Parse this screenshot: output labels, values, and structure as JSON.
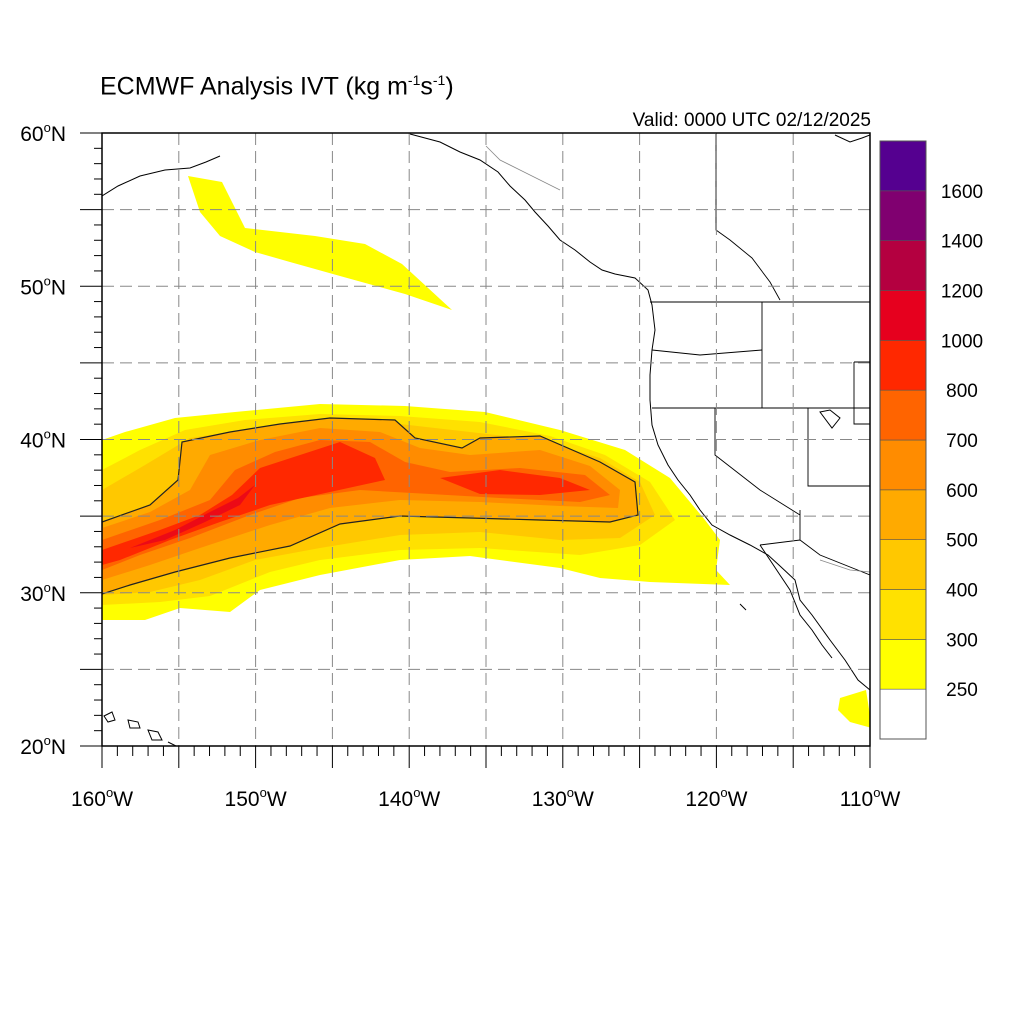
{
  "header": {
    "title_prefix": "ECMWF Analysis IVT (kg m",
    "title_exp1": "-1",
    "title_mid": "s",
    "title_exp2": "-1",
    "title_suffix": ")",
    "valid": "Valid: 0000 UTC 02/12/2025"
  },
  "axes": {
    "lat_labels": [
      {
        "value": 60,
        "deg": "60",
        "hemi": "N"
      },
      {
        "value": 50,
        "deg": "50",
        "hemi": "N"
      },
      {
        "value": 40,
        "deg": "40",
        "hemi": "N"
      },
      {
        "value": 30,
        "deg": "30",
        "hemi": "N"
      },
      {
        "value": 20,
        "deg": "20",
        "hemi": "N"
      }
    ],
    "lon_labels": [
      {
        "value": -160,
        "deg": "160",
        "hemi": "W"
      },
      {
        "value": -150,
        "deg": "150",
        "hemi": "W"
      },
      {
        "value": -140,
        "deg": "140",
        "hemi": "W"
      },
      {
        "value": -130,
        "deg": "130",
        "hemi": "W"
      },
      {
        "value": -120,
        "deg": "120",
        "hemi": "W"
      },
      {
        "value": -110,
        "deg": "110",
        "hemi": "W"
      }
    ],
    "lat_range": [
      20,
      60
    ],
    "lon_range": [
      -160,
      -110
    ],
    "grid": true
  },
  "colorbar": {
    "levels": [
      250,
      300,
      400,
      500,
      600,
      700,
      800,
      1000,
      1200,
      1400,
      1600
    ],
    "labels": [
      "250",
      "300",
      "400",
      "500",
      "600",
      "700",
      "800",
      "1000",
      "1200",
      "1400",
      "1600"
    ],
    "colors": [
      "#ffffff",
      "#ffff00",
      "#ffe100",
      "#ffc800",
      "#ffaa00",
      "#ff8c00",
      "#ff6400",
      "#ff2800",
      "#e6001e",
      "#b40040",
      "#800070",
      "#550090"
    ]
  },
  "colors": {
    "ivt_250": "#ffff00",
    "ivt_300": "#ffe100",
    "ivt_400": "#ffc800",
    "ivt_500": "#ffaa00",
    "ivt_600": "#ff8c00",
    "ivt_700": "#ff6400",
    "ivt_800": "#ff2800",
    "ivt_1000": "#e6001e"
  }
}
